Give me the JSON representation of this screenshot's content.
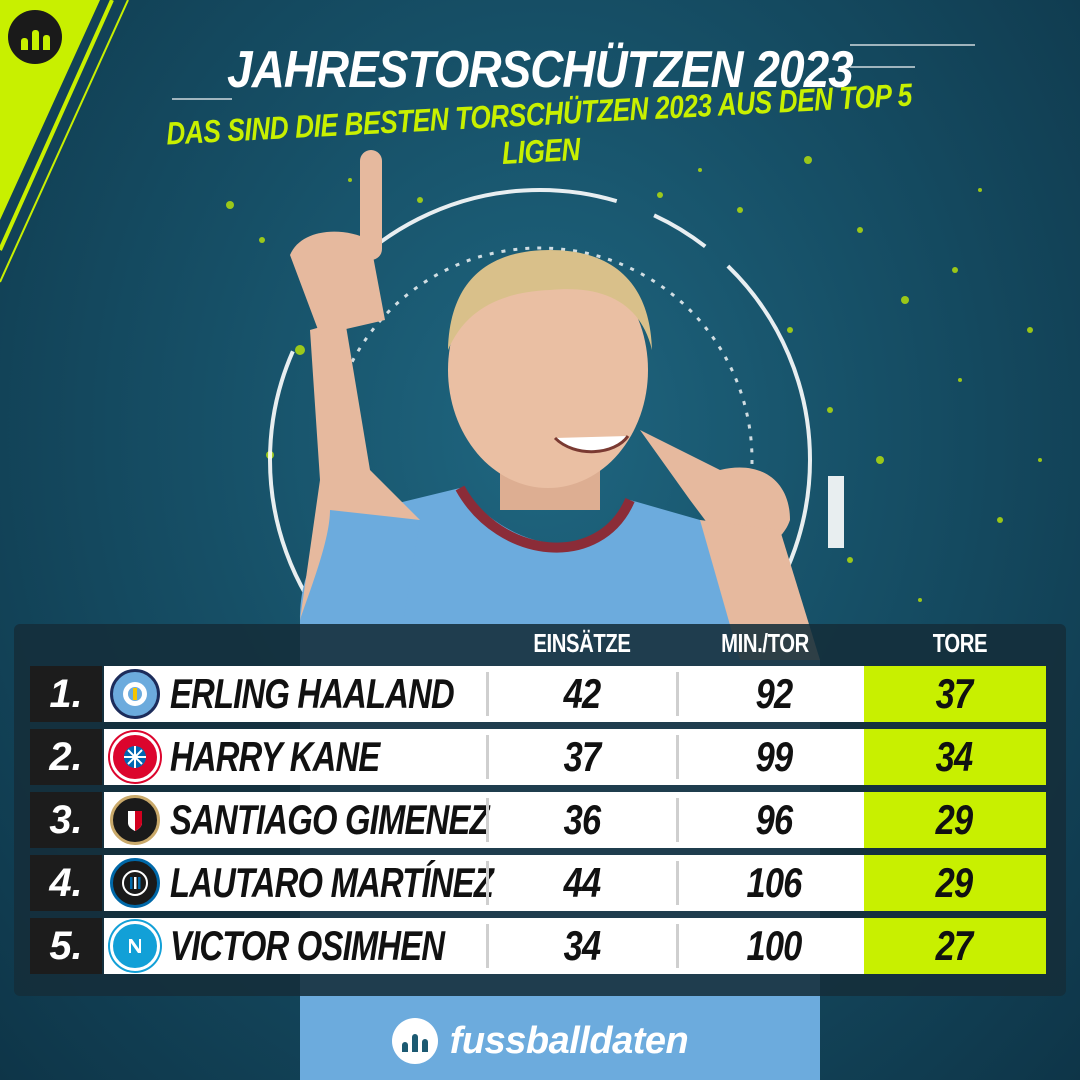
{
  "header": {
    "title": "JAHRESTORSCHÜTZEN 2023",
    "subtitle": "DAS SIND DIE BESTEN TORSCHÜTZEN 2023 AUS DEN TOP 5 LIGEN"
  },
  "colors": {
    "accent": "#c8f000",
    "background": "#164f66",
    "rank_bg": "#1c1c1c",
    "jersey": "#6cabdd"
  },
  "table": {
    "columns": {
      "appearances": "EINSÄTZE",
      "min_per_goal": "MIN./TOR",
      "goals": "TORE"
    },
    "rows": [
      {
        "rank": "1.",
        "name": "ERLING HAALAND",
        "club_icon": "manchester-city-crest",
        "appearances": "42",
        "min_per_goal": "92",
        "goals": "37"
      },
      {
        "rank": "2.",
        "name": "HARRY KANE",
        "club_icon": "bayern-munich-crest",
        "appearances": "37",
        "min_per_goal": "99",
        "goals": "34"
      },
      {
        "rank": "3.",
        "name": "SANTIAGO GIMENEZ",
        "club_icon": "feyenoord-crest",
        "appearances": "36",
        "min_per_goal": "96",
        "goals": "29"
      },
      {
        "rank": "4.",
        "name": "LAUTARO MARTÍNEZ",
        "club_icon": "inter-milan-crest",
        "appearances": "44",
        "min_per_goal": "106",
        "goals": "29"
      },
      {
        "rank": "5.",
        "name": "VICTOR OSIMHEN",
        "club_icon": "napoli-crest",
        "appearances": "34",
        "min_per_goal": "100",
        "goals": "27"
      }
    ]
  },
  "footer": {
    "brand": "fussballdaten"
  }
}
